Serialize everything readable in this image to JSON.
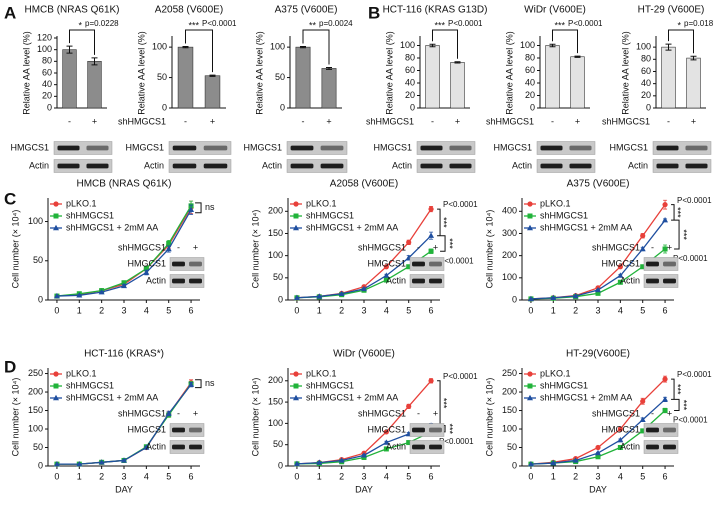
{
  "chart_data": [
    {
      "type": "bar",
      "panel": "A",
      "title": "HMCB (NRAS Q61K)",
      "ylabel": "Relative AA level (%)",
      "categories": [
        "-",
        "+"
      ],
      "values": [
        100,
        80
      ],
      "errors": [
        6,
        6
      ],
      "color": "#8c8c8c",
      "ylim": [
        0,
        120
      ],
      "yticks": [
        0,
        20,
        40,
        60,
        80,
        100,
        120
      ],
      "stars": "*",
      "p": "p=0.0228",
      "bands": [
        "HMGCS1",
        "Actin"
      ]
    },
    {
      "type": "bar",
      "title": "A2058 (V600E)",
      "ylabel": "Relative AA level (%)",
      "row_label": "shHMGCS1",
      "categories": [
        "-",
        "+"
      ],
      "values": [
        100,
        53
      ],
      "errors": [
        1,
        1
      ],
      "color": "#8c8c8c",
      "ylim": [
        0,
        115
      ],
      "yticks": [
        0,
        50,
        100
      ],
      "stars": "***",
      "p": "P<0.0001",
      "bands": [
        "HMGCS1",
        "Actin"
      ]
    },
    {
      "type": "bar",
      "title": "A375 (V600E)",
      "ylabel": "Relative AA level (%)",
      "categories": [
        "-",
        "+"
      ],
      "values": [
        100,
        65
      ],
      "errors": [
        1,
        1.5
      ],
      "color": "#8c8c8c",
      "ylim": [
        0,
        115
      ],
      "yticks": [
        0,
        50,
        100
      ],
      "stars": "**",
      "p": "p=0.0024",
      "bands": [
        "HMGCS1",
        "Actin"
      ]
    },
    {
      "type": "bar",
      "panel": "B",
      "title": "HCT-116 (KRAS G13D)",
      "ylabel": "Relative AA level (%)",
      "row_label": "shHMGCS1",
      "categories": [
        "-",
        "+"
      ],
      "values": [
        100,
        73
      ],
      "errors": [
        2,
        1
      ],
      "color": "#e3e3e3",
      "ylim": [
        0,
        112
      ],
      "yticks": [
        0,
        20,
        40,
        60,
        80,
        100
      ],
      "stars": "***",
      "p": "P<0.0001",
      "bands": [
        "HMGCS1",
        "Actin"
      ]
    },
    {
      "type": "bar",
      "title": "WiDr (V600E)",
      "ylabel": "Relative AA level (%)",
      "row_label": "shHMGCS1",
      "categories": [
        "-",
        "+"
      ],
      "values": [
        100,
        82
      ],
      "errors": [
        2,
        1
      ],
      "color": "#e3e3e3",
      "ylim": [
        0,
        112
      ],
      "yticks": [
        0,
        20,
        40,
        60,
        80,
        100
      ],
      "stars": "***",
      "p": "P<0.0001",
      "bands": [
        "HMGCS1",
        "Actin"
      ]
    },
    {
      "type": "bar",
      "title": "HT-29 (V600E)",
      "ylabel": "Relative AA level (%)",
      "row_label": "shHMGCS1",
      "categories": [
        "-",
        "+"
      ],
      "values": [
        100,
        82
      ],
      "errors": [
        5,
        3
      ],
      "color": "#e3e3e3",
      "ylim": [
        0,
        115
      ],
      "yticks": [
        0,
        20,
        40,
        60,
        80,
        100
      ],
      "stars": "*",
      "p": "p=0.0182",
      "bands": [
        "HMGCS1",
        "Actin"
      ]
    },
    {
      "type": "line",
      "panel": "C",
      "title": "HMCB (NRAS Q61K)",
      "ylabel": "Cell number (× 10⁴)",
      "x": [
        0,
        1,
        2,
        3,
        4,
        5,
        6
      ],
      "xlim": [
        -0.4,
        6.4
      ],
      "xticks": [
        0,
        1,
        2,
        3,
        4,
        5,
        6
      ],
      "ylim": [
        0,
        130
      ],
      "yticks": [
        0,
        50,
        100
      ],
      "series": [
        {
          "name": "pLKO.1",
          "color": "#e8403a",
          "marker": "circle",
          "values": [
            5,
            7,
            12,
            20,
            40,
            70,
            118
          ],
          "errors": [
            0,
            1,
            1,
            2,
            3,
            4,
            8
          ]
        },
        {
          "name": "shHMGCS1",
          "color": "#21b33a",
          "marker": "square",
          "values": [
            5,
            8,
            12,
            22,
            40,
            72,
            120
          ],
          "errors": [
            0,
            1,
            1,
            2,
            3,
            4,
            6
          ]
        },
        {
          "name": "shHMGCS1 + 2mM AA",
          "color": "#1f4fa0",
          "marker": "triangle",
          "values": [
            5,
            6,
            10,
            18,
            35,
            65,
            115
          ],
          "errors": [
            0,
            1,
            1,
            2,
            3,
            4,
            6
          ]
        }
      ],
      "ns": "ns",
      "blot": {
        "row_label": "shHMGCS1",
        "lanes": [
          "-",
          "+"
        ],
        "bands": [
          "HMGCS1",
          "Actin"
        ]
      }
    },
    {
      "type": "line",
      "title": "A2058 (V600E)",
      "ylabel": "Cell number (× 10⁴)",
      "x": [
        0,
        1,
        2,
        3,
        4,
        5,
        6
      ],
      "xlim": [
        -0.4,
        6.4
      ],
      "xticks": [
        0,
        1,
        2,
        3,
        4,
        5,
        6
      ],
      "ylim": [
        0,
        230
      ],
      "yticks": [
        0,
        50,
        100,
        150,
        200
      ],
      "series": [
        {
          "name": "pLKO.1",
          "color": "#e8403a",
          "marker": "circle",
          "values": [
            5,
            8,
            15,
            30,
            75,
            130,
            205
          ],
          "errors": [
            0,
            1,
            1,
            2,
            3,
            5,
            6
          ]
        },
        {
          "name": "shHMGCS1",
          "color": "#21b33a",
          "marker": "square",
          "values": [
            5,
            7,
            12,
            22,
            45,
            75,
            110
          ],
          "errors": [
            0,
            1,
            1,
            2,
            3,
            4,
            5
          ]
        },
        {
          "name": "shHMGCS1 + 2mM AA",
          "color": "#1f4fa0",
          "marker": "triangle",
          "values": [
            5,
            8,
            14,
            25,
            55,
            95,
            145
          ],
          "errors": [
            0,
            1,
            1,
            2,
            3,
            5,
            8
          ]
        }
      ],
      "sig_top": "P<0.0001",
      "sig_stars": [
        "***",
        "***"
      ],
      "sig_bottom": "P<0.0001",
      "blot": {
        "row_label": "shHMGCS1",
        "lanes": [
          "-",
          "+"
        ],
        "bands": [
          "HMGCS1",
          "Actin"
        ]
      }
    },
    {
      "type": "line",
      "title": "A375 (V600E)",
      "ylabel": "Cell number (× 10⁴)",
      "x": [
        0,
        1,
        2,
        3,
        4,
        5,
        6
      ],
      "xlim": [
        -0.4,
        6.4
      ],
      "xticks": [
        0,
        1,
        2,
        3,
        4,
        5,
        6
      ],
      "ylim": [
        0,
        460
      ],
      "yticks": [
        0,
        100,
        200,
        300,
        400
      ],
      "series": [
        {
          "name": "pLKO.1",
          "color": "#e8403a",
          "marker": "circle",
          "values": [
            5,
            10,
            20,
            55,
            150,
            290,
            430
          ],
          "errors": [
            0,
            1,
            2,
            4,
            6,
            10,
            20
          ]
        },
        {
          "name": "shHMGCS1",
          "color": "#21b33a",
          "marker": "square",
          "values": [
            5,
            8,
            15,
            30,
            80,
            150,
            230
          ],
          "errors": [
            0,
            1,
            2,
            3,
            5,
            8,
            18
          ]
        },
        {
          "name": "shHMGCS1 + 2mM AA",
          "color": "#1f4fa0",
          "marker": "triangle",
          "values": [
            5,
            10,
            18,
            45,
            110,
            230,
            360
          ],
          "errors": [
            0,
            1,
            2,
            3,
            5,
            8,
            6
          ]
        }
      ],
      "sig_top": "P<0.0001",
      "sig_stars": [
        "***",
        "***"
      ],
      "sig_bottom": "P<0.0001",
      "blot": {
        "row_label": "shHMGCS1",
        "lanes": [
          "-",
          "+"
        ],
        "bands": [
          "HMGCS1",
          "Actin"
        ]
      }
    },
    {
      "type": "line",
      "panel": "D",
      "title": "HCT-116 (KRAS*)",
      "ylabel": "Cell number (× 10⁴)",
      "xlabel": "DAY",
      "x": [
        0,
        1,
        2,
        3,
        4,
        5,
        6
      ],
      "xlim": [
        -0.4,
        6.4
      ],
      "xticks": [
        0,
        1,
        2,
        3,
        4,
        5,
        6
      ],
      "ylim": [
        0,
        265
      ],
      "yticks": [
        0,
        50,
        100,
        150,
        200,
        250
      ],
      "series": [
        {
          "name": "pLKO.1",
          "color": "#e8403a",
          "marker": "circle",
          "values": [
            5,
            5,
            10,
            15,
            50,
            140,
            225
          ],
          "errors": [
            0,
            1,
            1,
            2,
            3,
            8,
            8
          ]
        },
        {
          "name": "shHMGCS1",
          "color": "#21b33a",
          "marker": "square",
          "values": [
            5,
            5,
            10,
            15,
            52,
            138,
            222
          ],
          "errors": [
            0,
            1,
            1,
            2,
            3,
            6,
            6
          ]
        },
        {
          "name": "shHMGCS1 + 2mM AA",
          "color": "#1f4fa0",
          "marker": "triangle",
          "values": [
            5,
            5,
            10,
            15,
            50,
            142,
            220
          ],
          "errors": [
            0,
            1,
            1,
            2,
            3,
            6,
            6
          ]
        }
      ],
      "ns": "ns",
      "blot": {
        "row_label": "shHMGCS1",
        "lanes": [
          "-",
          "+"
        ],
        "bands": [
          "HMGCS1",
          "Actin"
        ]
      }
    },
    {
      "type": "line",
      "title": "WiDr (V600E)",
      "ylabel": "Cell number (× 10⁴)",
      "xlabel": "DAY",
      "x": [
        0,
        1,
        2,
        3,
        4,
        5,
        6
      ],
      "xlim": [
        -0.4,
        6.4
      ],
      "xticks": [
        0,
        1,
        2,
        3,
        4,
        5,
        6
      ],
      "ylim": [
        0,
        230
      ],
      "yticks": [
        0,
        50,
        100,
        150,
        200
      ],
      "series": [
        {
          "name": "pLKO.1",
          "color": "#e8403a",
          "marker": "circle",
          "values": [
            5,
            8,
            15,
            30,
            80,
            140,
            200
          ],
          "errors": [
            0,
            1,
            1,
            2,
            3,
            5,
            5
          ]
        },
        {
          "name": "shHMGCS1",
          "color": "#21b33a",
          "marker": "square",
          "values": [
            5,
            6,
            10,
            20,
            40,
            55,
            80
          ],
          "errors": [
            0,
            1,
            1,
            2,
            3,
            3,
            5
          ]
        },
        {
          "name": "shHMGCS1 + 2mM AA",
          "color": "#1f4fa0",
          "marker": "triangle",
          "values": [
            5,
            8,
            13,
            25,
            55,
            75,
            95
          ],
          "errors": [
            0,
            1,
            1,
            2,
            3,
            4,
            5
          ]
        }
      ],
      "sig_top": "P<0.0001",
      "sig_stars": [
        "***",
        "***"
      ],
      "sig_bottom": "P<0.0001",
      "blot": {
        "row_label": "shHMGCS1",
        "lanes": [
          "-",
          "+"
        ],
        "bands": [
          "HMGCS1",
          "Actin"
        ]
      }
    },
    {
      "type": "line",
      "title": "HT-29(V600E)",
      "ylabel": "Cell number (× 10⁴)",
      "xlabel": "DAY",
      "x": [
        0,
        1,
        2,
        3,
        4,
        5,
        6
      ],
      "xlim": [
        -0.4,
        6.4
      ],
      "xticks": [
        0,
        1,
        2,
        3,
        4,
        5,
        6
      ],
      "ylim": [
        0,
        265
      ],
      "yticks": [
        0,
        50,
        100,
        150,
        200,
        250
      ],
      "series": [
        {
          "name": "pLKO.1",
          "color": "#e8403a",
          "marker": "circle",
          "values": [
            5,
            10,
            20,
            50,
            100,
            175,
            235
          ],
          "errors": [
            0,
            1,
            2,
            3,
            4,
            8,
            8
          ]
        },
        {
          "name": "shHMGCS1",
          "color": "#21b33a",
          "marker": "square",
          "values": [
            5,
            8,
            12,
            25,
            50,
            95,
            150
          ],
          "errors": [
            0,
            1,
            1,
            2,
            3,
            5,
            6
          ]
        },
        {
          "name": "shHMGCS1 + 2mM AA",
          "color": "#1f4fa0",
          "marker": "triangle",
          "values": [
            5,
            8,
            15,
            35,
            70,
            125,
            180
          ],
          "errors": [
            0,
            1,
            1,
            2,
            3,
            5,
            6
          ]
        }
      ],
      "sig_top": "P<0.0001",
      "sig_stars": [
        "***",
        "***"
      ],
      "sig_bottom": "P<0.0001",
      "blot": {
        "row_label": "shHMGCS1",
        "lanes": [
          "-",
          "+"
        ],
        "bands": [
          "HMGCS1",
          "Actin"
        ]
      }
    }
  ]
}
